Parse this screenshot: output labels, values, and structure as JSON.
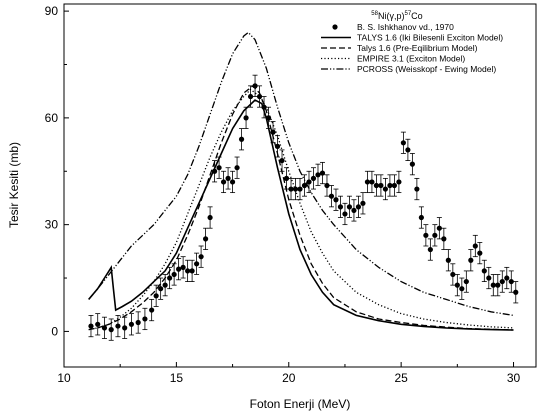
{
  "chart_data": {
    "type": "scatter",
    "title": "58Ni(γ,p)57Co",
    "title_parts": {
      "mass1": "58",
      "el1": "Ni(γ,p)",
      "mass2": "57",
      "el2": "Co"
    },
    "xlabel": "Foton Enerji (MeV)",
    "ylabel": "Tesir Kesiti (mb)",
    "xlim": [
      10,
      31
    ],
    "ylim": [
      -10,
      92
    ],
    "xticks": [
      10,
      15,
      20,
      25,
      30
    ],
    "yticks": [
      0,
      30,
      60,
      90
    ],
    "grid": false,
    "legend_position": "top-right",
    "legend": [
      {
        "label": "B. S. Ishkhanov vd., 1970",
        "style": "marker"
      },
      {
        "label": "TALYS 1.6 (Iki Bilesenli Exciton Model)",
        "style": "solid"
      },
      {
        "label": "Talys 1.6 (Pre-Eqilibrium Model)",
        "style": "dash"
      },
      {
        "label": "EMPIRE 3.1 (Exciton Model)",
        "style": "dot"
      },
      {
        "label": "PCROSS (Weisskopf - Ewing Model)",
        "style": "dashdotdot"
      }
    ],
    "series": [
      {
        "name": "B. S. Ishkhanov vd., 1970",
        "style": "marker",
        "error": 3,
        "points": [
          [
            11.2,
            1.5
          ],
          [
            11.5,
            2.0
          ],
          [
            11.8,
            1.0
          ],
          [
            12.1,
            0.5
          ],
          [
            12.4,
            1.5
          ],
          [
            12.7,
            1.0
          ],
          [
            13.0,
            2.0
          ],
          [
            13.3,
            2.5
          ],
          [
            13.6,
            3.5
          ],
          [
            13.9,
            6.0
          ],
          [
            14.1,
            10.0
          ],
          [
            14.3,
            12.0
          ],
          [
            14.5,
            13.0
          ],
          [
            14.7,
            15.0
          ],
          [
            14.9,
            16.0
          ],
          [
            15.1,
            17.5
          ],
          [
            15.3,
            18.0
          ],
          [
            15.5,
            17.0
          ],
          [
            15.7,
            17.0
          ],
          [
            15.9,
            19.0
          ],
          [
            16.1,
            21.0
          ],
          [
            16.3,
            26.0
          ],
          [
            16.5,
            32.0
          ],
          [
            16.7,
            45.0
          ],
          [
            16.9,
            46.0
          ],
          [
            17.1,
            42.0
          ],
          [
            17.3,
            43.0
          ],
          [
            17.5,
            42.0
          ],
          [
            17.7,
            46.0
          ],
          [
            17.9,
            54.0
          ],
          [
            18.1,
            60.0
          ],
          [
            18.3,
            66.0
          ],
          [
            18.5,
            69.0
          ],
          [
            18.7,
            66.0
          ],
          [
            18.9,
            63.0
          ],
          [
            19.1,
            60.0
          ],
          [
            19.3,
            56.0
          ],
          [
            19.5,
            52.0
          ],
          [
            19.7,
            48.0
          ],
          [
            19.9,
            43.0
          ],
          [
            20.1,
            40.0
          ],
          [
            20.3,
            40.0
          ],
          [
            20.5,
            40.0
          ],
          [
            20.7,
            41.0
          ],
          [
            20.9,
            42.0
          ],
          [
            21.1,
            43.0
          ],
          [
            21.3,
            44.0
          ],
          [
            21.5,
            44.5
          ],
          [
            21.7,
            41.0
          ],
          [
            21.9,
            38.0
          ],
          [
            22.1,
            37.0
          ],
          [
            22.3,
            35.0
          ],
          [
            22.5,
            33.0
          ],
          [
            22.7,
            35.0
          ],
          [
            22.9,
            34.0
          ],
          [
            23.1,
            35.0
          ],
          [
            23.3,
            36.0
          ],
          [
            23.5,
            42.0
          ],
          [
            23.7,
            42.0
          ],
          [
            23.9,
            41.0
          ],
          [
            24.1,
            41.0
          ],
          [
            24.3,
            40.0
          ],
          [
            24.5,
            41.0
          ],
          [
            24.7,
            41.0
          ],
          [
            24.9,
            42.0
          ],
          [
            25.1,
            53.0
          ],
          [
            25.3,
            51.0
          ],
          [
            25.5,
            47.0
          ],
          [
            25.7,
            40.0
          ],
          [
            25.9,
            32.0
          ],
          [
            26.1,
            27.0
          ],
          [
            26.3,
            23.0
          ],
          [
            26.5,
            27.0
          ],
          [
            26.7,
            29.0
          ],
          [
            26.9,
            26.0
          ],
          [
            27.1,
            20.0
          ],
          [
            27.3,
            16.0
          ],
          [
            27.5,
            13.0
          ],
          [
            27.7,
            12.0
          ],
          [
            27.9,
            14.0
          ],
          [
            28.1,
            20.0
          ],
          [
            28.3,
            24.0
          ],
          [
            28.5,
            22.0
          ],
          [
            28.7,
            17.0
          ],
          [
            28.9,
            15.0
          ],
          [
            29.1,
            13.0
          ],
          [
            29.3,
            13.0
          ],
          [
            29.5,
            14.0
          ],
          [
            29.7,
            15.0
          ],
          [
            29.9,
            14.0
          ],
          [
            30.1,
            11.0
          ]
        ]
      },
      {
        "name": "TALYS 1.6 (Iki Bilesenli Exciton Model)",
        "style": "solid",
        "points": [
          [
            11.1,
            9.0
          ],
          [
            11.5,
            12.0
          ],
          [
            11.8,
            15.0
          ],
          [
            12.0,
            17.0
          ],
          [
            12.1,
            18.0
          ],
          [
            12.2,
            12.0
          ],
          [
            12.3,
            6.0
          ],
          [
            12.6,
            7.0
          ],
          [
            13.0,
            8.5
          ],
          [
            13.5,
            11.0
          ],
          [
            14.0,
            14.0
          ],
          [
            14.5,
            17.0
          ],
          [
            15.0,
            22.0
          ],
          [
            15.5,
            29.0
          ],
          [
            16.0,
            36.0
          ],
          [
            16.5,
            43.0
          ],
          [
            17.0,
            50.0
          ],
          [
            17.5,
            57.0
          ],
          [
            18.0,
            62.0
          ],
          [
            18.5,
            65.0
          ],
          [
            18.8,
            64.0
          ],
          [
            19.0,
            60.0
          ],
          [
            19.5,
            46.0
          ],
          [
            20.0,
            33.0
          ],
          [
            20.5,
            23.0
          ],
          [
            21.0,
            16.0
          ],
          [
            21.5,
            11.0
          ],
          [
            22.0,
            7.5
          ],
          [
            23.0,
            4.5
          ],
          [
            24.0,
            3.0
          ],
          [
            25.0,
            2.0
          ],
          [
            26.0,
            1.4
          ],
          [
            27.0,
            1.0
          ],
          [
            28.0,
            0.7
          ],
          [
            29.0,
            0.5
          ],
          [
            30.0,
            0.4
          ]
        ]
      },
      {
        "name": "Talys 1.6 (Pre-Eqilibrium Model)",
        "style": "dash",
        "points": [
          [
            11.1,
            0.5
          ],
          [
            11.5,
            1.0
          ],
          [
            12.0,
            2.0
          ],
          [
            12.5,
            3.5
          ],
          [
            13.0,
            5.5
          ],
          [
            13.5,
            8.0
          ],
          [
            14.0,
            11.0
          ],
          [
            14.5,
            15.0
          ],
          [
            15.0,
            20.0
          ],
          [
            15.5,
            27.0
          ],
          [
            16.0,
            35.0
          ],
          [
            16.5,
            44.0
          ],
          [
            17.0,
            53.0
          ],
          [
            17.5,
            61.0
          ],
          [
            18.0,
            67.0
          ],
          [
            18.4,
            69.0
          ],
          [
            18.7,
            67.0
          ],
          [
            19.0,
            62.0
          ],
          [
            19.5,
            50.0
          ],
          [
            20.0,
            37.0
          ],
          [
            20.5,
            27.0
          ],
          [
            21.0,
            19.0
          ],
          [
            21.5,
            13.5
          ],
          [
            22.0,
            9.5
          ],
          [
            23.0,
            5.5
          ],
          [
            24.0,
            3.5
          ],
          [
            25.0,
            2.5
          ],
          [
            26.0,
            1.7
          ],
          [
            27.0,
            1.2
          ],
          [
            28.0,
            0.8
          ],
          [
            29.0,
            0.6
          ],
          [
            30.0,
            0.4
          ]
        ]
      },
      {
        "name": "EMPIRE 3.1 (Exciton Model)",
        "style": "dot",
        "points": [
          [
            11.1,
            0.5
          ],
          [
            11.5,
            1.0
          ],
          [
            12.0,
            2.0
          ],
          [
            12.5,
            4.0
          ],
          [
            13.0,
            6.5
          ],
          [
            13.5,
            10.0
          ],
          [
            14.0,
            14.0
          ],
          [
            14.5,
            19.0
          ],
          [
            15.0,
            25.0
          ],
          [
            15.5,
            33.0
          ],
          [
            16.0,
            41.0
          ],
          [
            16.5,
            49.0
          ],
          [
            17.0,
            56.0
          ],
          [
            17.5,
            62.0
          ],
          [
            18.0,
            66.0
          ],
          [
            18.3,
            68.0
          ],
          [
            18.7,
            66.0
          ],
          [
            19.0,
            63.0
          ],
          [
            19.5,
            55.0
          ],
          [
            20.0,
            45.0
          ],
          [
            20.5,
            36.0
          ],
          [
            21.0,
            28.0
          ],
          [
            21.5,
            22.0
          ],
          [
            22.0,
            17.0
          ],
          [
            23.0,
            11.0
          ],
          [
            24.0,
            7.5
          ],
          [
            25.0,
            5.0
          ],
          [
            26.0,
            3.5
          ],
          [
            27.0,
            2.5
          ],
          [
            28.0,
            1.8
          ],
          [
            29.0,
            1.3
          ],
          [
            30.0,
            1.0
          ]
        ]
      },
      {
        "name": "PCROSS (Weisskopf - Ewing Model)",
        "style": "dashdotdot",
        "points": [
          [
            11.1,
            9.0
          ],
          [
            11.5,
            12.0
          ],
          [
            12.0,
            16.0
          ],
          [
            12.5,
            20.0
          ],
          [
            13.0,
            24.0
          ],
          [
            13.5,
            27.0
          ],
          [
            14.0,
            30.0
          ],
          [
            14.5,
            34.0
          ],
          [
            15.0,
            38.0
          ],
          [
            15.5,
            44.0
          ],
          [
            16.0,
            52.0
          ],
          [
            16.5,
            61.0
          ],
          [
            17.0,
            70.0
          ],
          [
            17.5,
            78.0
          ],
          [
            18.0,
            83.0
          ],
          [
            18.2,
            84.0
          ],
          [
            18.5,
            82.0
          ],
          [
            19.0,
            74.0
          ],
          [
            19.5,
            63.0
          ],
          [
            20.0,
            53.0
          ],
          [
            20.5,
            45.0
          ],
          [
            21.0,
            39.0
          ],
          [
            21.5,
            34.0
          ],
          [
            22.0,
            30.0
          ],
          [
            23.0,
            23.0
          ],
          [
            24.0,
            18.0
          ],
          [
            25.0,
            14.0
          ],
          [
            26.0,
            11.0
          ],
          [
            27.0,
            9.0
          ],
          [
            28.0,
            7.0
          ],
          [
            29.0,
            5.5
          ],
          [
            30.0,
            4.5
          ]
        ]
      }
    ]
  }
}
